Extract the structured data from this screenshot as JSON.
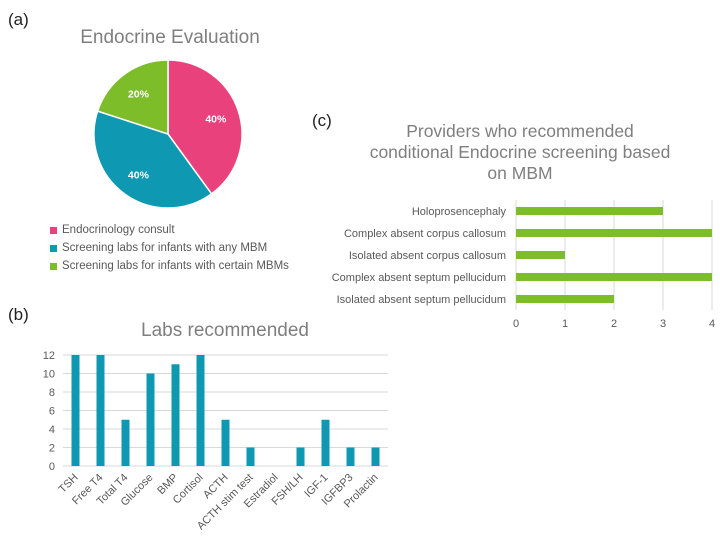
{
  "panels": {
    "a": "(a)",
    "b": "(b)",
    "c": "(c)"
  },
  "chart_data": [
    {
      "type": "pie",
      "title": "Endocrine Evaluation",
      "categories": [
        "Endocrinology consult",
        "Screening labs for infants with any MBM",
        "Screening labs for infants with certain MBMs"
      ],
      "values": [
        40,
        40,
        20
      ],
      "labels": [
        "40%",
        "40%",
        "20%"
      ],
      "colors": [
        "#e8417c",
        "#0e98b1",
        "#7dbd2a"
      ],
      "legend_position": "bottom"
    },
    {
      "type": "bar",
      "title": "Labs recommended",
      "categories": [
        "TSH",
        "Free T4",
        "Total T4",
        "Glucose",
        "BMP",
        "Cortisol",
        "ACTH",
        "ACTH stim test",
        "Estradiol",
        "FSH/LH",
        "IGF-1",
        "IGFBP3",
        "Prolactin"
      ],
      "values": [
        12,
        12,
        5,
        10,
        11,
        12,
        5,
        2,
        0,
        2,
        5,
        2,
        2
      ],
      "yticks": [
        "0",
        "2",
        "4",
        "6",
        "8",
        "10",
        "12"
      ],
      "ylim": [
        0,
        12
      ],
      "color": "#0e98b1",
      "grid": true
    },
    {
      "type": "bar",
      "orientation": "horizontal",
      "title_lines": [
        "Providers who recommended",
        "conditional Endocrine screening based",
        "on MBM"
      ],
      "categories": [
        "Holoprosencephaly",
        "Complex absent corpus callosum",
        "Isolated absent corpus callosum",
        "Complex absent septum pellucidum",
        "Isolated absent septum pellucidum"
      ],
      "values": [
        3,
        4,
        1,
        4,
        2
      ],
      "xticks": [
        "0",
        "1",
        "2",
        "3",
        "4"
      ],
      "xlim": [
        0,
        4
      ],
      "color": "#7dbd2a",
      "grid": true
    }
  ]
}
